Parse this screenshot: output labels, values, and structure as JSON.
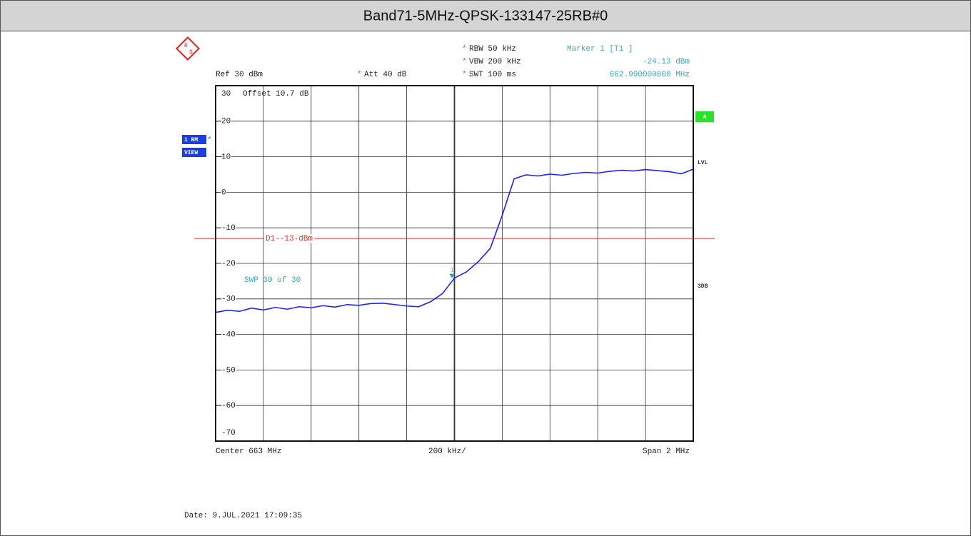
{
  "chart_data": {
    "type": "line",
    "title": "Band71-5MHz-QPSK-133147-25RB#0",
    "star": "*",
    "ref": "Ref  30 dBm",
    "att": "Att  40 dB",
    "rbw": "RBW  50 kHz",
    "vbw": "VBW  200 kHz",
    "swt": "SWT  100 ms",
    "offset": "Offset  10.7 dB",
    "sweep": "SWP   30 of   30",
    "marker": {
      "label": "Marker 1 [T1 ]",
      "level_label": "-24.13 dBm",
      "freq_label": "662.990000000 MHz",
      "x": 662.99,
      "y": -24.13,
      "name": "1"
    },
    "display_line": {
      "value": -13,
      "label": "D1  -13 dBm"
    },
    "side_labels": {
      "trace": "1 RM",
      "view": "VIEW",
      "a": "A",
      "lvl": "LVL",
      "db3": "3DB"
    },
    "center": "Center  663 MHz",
    "per_div": "200 kHz/",
    "span": "Span  2 MHz",
    "date": "Date: 9.JUL.2021  17:09:35",
    "xlim": [
      662,
      664
    ],
    "xticks": [
      662,
      662.2,
      662.4,
      662.6,
      662.8,
      663,
      663.2,
      663.4,
      663.6,
      663.8,
      664
    ],
    "ylim": [
      -70,
      30
    ],
    "yticks": [
      -70,
      -60,
      -50,
      -40,
      -30,
      -20,
      -10,
      0,
      10,
      20,
      30
    ],
    "grid": true,
    "series": [
      {
        "color": "#1f1fff",
        "x": [
          662.0,
          662.05,
          662.1,
          662.15,
          662.2,
          662.25,
          662.3,
          662.35,
          662.4,
          662.45,
          662.5,
          662.55,
          662.6,
          662.65,
          662.7,
          662.75,
          662.8,
          662.85,
          662.9,
          662.95,
          663.0,
          663.05,
          663.1,
          663.15,
          663.2,
          663.25,
          663.3,
          663.35,
          663.4,
          663.45,
          663.5,
          663.55,
          663.6,
          663.65,
          663.7,
          663.75,
          663.8,
          663.85,
          663.9,
          663.95,
          664.0
        ],
        "values": [
          -33.8,
          -33.2,
          -33.5,
          -32.6,
          -33.1,
          -32.4,
          -32.9,
          -32.2,
          -32.5,
          -31.9,
          -32.3,
          -31.6,
          -31.8,
          -31.3,
          -31.2,
          -31.6,
          -32.0,
          -32.2,
          -30.8,
          -28.5,
          -24.13,
          -22.4,
          -19.5,
          -15.8,
          -6.5,
          3.8,
          4.9,
          4.6,
          5.1,
          4.8,
          5.3,
          5.6,
          5.4,
          5.9,
          6.2,
          6.0,
          6.4,
          6.1,
          5.8,
          5.2,
          6.5
        ]
      }
    ]
  }
}
